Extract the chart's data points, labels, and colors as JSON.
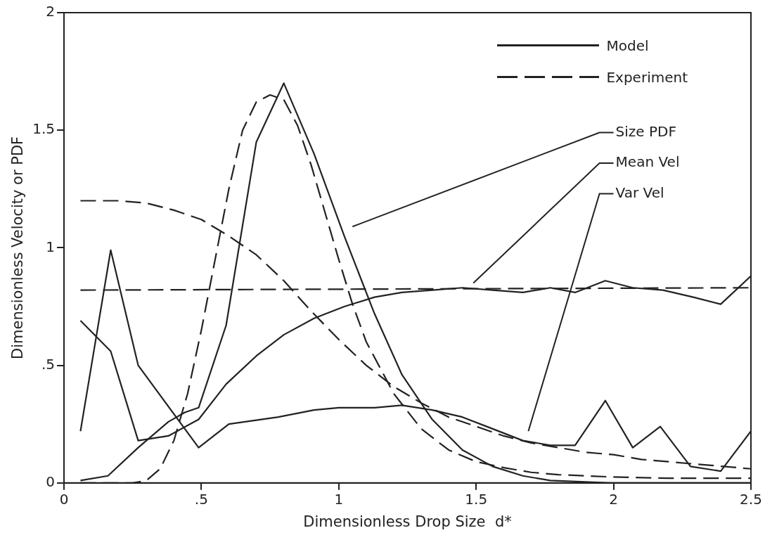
{
  "chart_data": {
    "type": "line",
    "xlabel": "Dimensionless Drop Size  d*",
    "ylabel": "Dimensionless Velocity or PDF",
    "xlim": [
      0,
      2.5
    ],
    "xticks": [
      0,
      {
        "value": 0.5,
        "label": ".5"
      },
      1,
      1.5,
      2,
      2.5
    ],
    "ylim": [
      0,
      2
    ],
    "yticks": [
      0,
      {
        "value": 0.5,
        "label": ".5"
      },
      1,
      1.5,
      2
    ],
    "grid": false,
    "legend": "top right",
    "series": [
      {
        "name": "Model",
        "color": "#222222",
        "line_style": "solid",
        "x": [
          0.06,
          0.16,
          0.27,
          0.38,
          0.44,
          0.49,
          0.59,
          0.7,
          0.8,
          0.91,
          1.02,
          1.13,
          1.23,
          1.34,
          1.45,
          1.56,
          1.67,
          1.77,
          1.88,
          1.99,
          2.09,
          2.2,
          2.31,
          2.41,
          2.5
        ],
        "values": [
          0.01,
          0.03,
          0.15,
          0.26,
          0.3,
          0.32,
          0.67,
          1.45,
          1.7,
          1.4,
          1.05,
          0.72,
          0.46,
          0.27,
          0.14,
          0.07,
          0.03,
          0.01,
          0.005,
          0,
          0,
          0,
          0,
          0,
          0
        ]
      },
      {
        "name": "Experiment",
        "color": "#222222",
        "line_style": "dashed",
        "x": [
          0.06,
          0.25,
          0.3,
          0.35,
          0.4,
          0.45,
          0.5,
          0.55,
          0.6,
          0.65,
          0.7,
          0.75,
          0.8,
          0.85,
          0.9,
          0.95,
          1.0,
          1.05,
          1.1,
          1.2,
          1.3,
          1.4,
          1.5,
          1.6,
          1.7,
          1.8,
          2.0,
          2.2,
          2.5
        ],
        "values": [
          0,
          0,
          0.01,
          0.06,
          0.18,
          0.38,
          0.65,
          0.95,
          1.25,
          1.5,
          1.62,
          1.65,
          1.63,
          1.52,
          1.35,
          1.15,
          0.95,
          0.76,
          0.6,
          0.38,
          0.23,
          0.14,
          0.09,
          0.065,
          0.045,
          0.035,
          0.025,
          0.02,
          0.02
        ]
      },
      {
        "color": "#222222",
        "line_style": "solid",
        "x": [
          0.06,
          0.17,
          0.27,
          0.38,
          0.49,
          0.59,
          0.7,
          0.8,
          0.91,
          1.02,
          1.13,
          1.23,
          1.34,
          1.45,
          1.56,
          1.67,
          1.77,
          1.86,
          1.97,
          2.07,
          2.18,
          2.29,
          2.39,
          2.5
        ],
        "values": [
          0.69,
          0.56,
          0.18,
          0.2,
          0.27,
          0.42,
          0.54,
          0.63,
          0.7,
          0.75,
          0.79,
          0.81,
          0.82,
          0.83,
          0.82,
          0.81,
          0.83,
          0.81,
          0.86,
          0.83,
          0.82,
          0.79,
          0.76,
          0.88
        ]
      },
      {
        "color": "#222222",
        "line_style": "dashed",
        "x": [
          0.06,
          2.5
        ],
        "values": [
          0.82,
          0.83
        ]
      },
      {
        "color": "#222222",
        "line_style": "solid",
        "x": [
          0.06,
          0.17,
          0.27,
          0.49,
          0.6,
          0.78,
          0.91,
          1.0,
          1.13,
          1.23,
          1.34,
          1.45,
          1.56,
          1.67,
          1.77,
          1.86,
          1.97,
          2.07,
          2.17,
          2.28,
          2.39,
          2.5
        ],
        "values": [
          0.22,
          0.99,
          0.5,
          0.15,
          0.25,
          0.28,
          0.31,
          0.32,
          0.32,
          0.33,
          0.31,
          0.28,
          0.23,
          0.18,
          0.16,
          0.16,
          0.35,
          0.15,
          0.24,
          0.07,
          0.05,
          0.22
        ]
      },
      {
        "color": "#222222",
        "line_style": "dashed",
        "x": [
          0.06,
          0.2,
          0.3,
          0.4,
          0.5,
          0.6,
          0.7,
          0.8,
          0.9,
          1.0,
          1.1,
          1.2,
          1.3,
          1.4,
          1.5,
          1.6,
          1.7,
          1.8,
          1.9,
          2.0,
          2.1,
          2.2,
          2.3,
          2.4,
          2.5
        ],
        "values": [
          1.2,
          1.2,
          1.19,
          1.16,
          1.12,
          1.05,
          0.97,
          0.86,
          0.73,
          0.61,
          0.5,
          0.41,
          0.34,
          0.28,
          0.24,
          0.2,
          0.17,
          0.15,
          0.13,
          0.12,
          0.1,
          0.09,
          0.08,
          0.07,
          0.06
        ]
      }
    ],
    "annotations": [
      "Size PDF",
      "Mean Vel",
      "Var Vel"
    ]
  }
}
